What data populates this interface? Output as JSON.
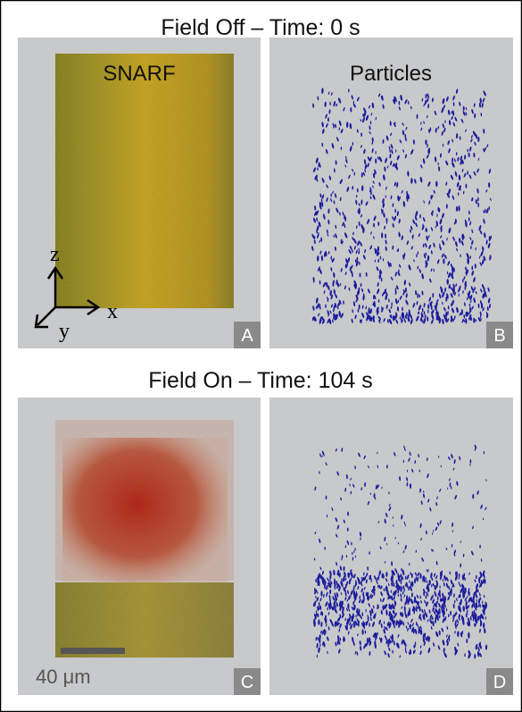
{
  "figure": {
    "top_title": "Field Off – Time: 0 s",
    "bottom_title": "Field On – Time: 104 s",
    "columns": [
      "SNARF",
      "Particles"
    ],
    "panels": [
      "A",
      "B",
      "C",
      "D"
    ],
    "axes": [
      "z",
      "x",
      "y"
    ],
    "scale_bar": "40 μm"
  }
}
